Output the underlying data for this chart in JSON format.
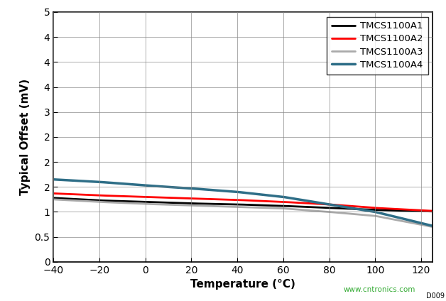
{
  "title": "",
  "xlabel": "Temperature (°C)",
  "ylabel": "Typical Offset (mV)",
  "xlim": [
    -40,
    125
  ],
  "ylim": [
    0,
    5
  ],
  "xticks": [
    -40,
    -20,
    0,
    20,
    40,
    60,
    80,
    100,
    120
  ],
  "yticks": [
    0,
    0.5,
    1.0,
    1.5,
    2.0,
    2.5,
    3.0,
    3.5,
    4.0,
    4.5,
    5.0
  ],
  "series": [
    {
      "label": "TMCS1100A1",
      "color": "#000000",
      "linewidth": 2.0,
      "x": [
        -40,
        -20,
        0,
        20,
        40,
        60,
        80,
        100,
        125
      ],
      "y": [
        1.28,
        1.23,
        1.2,
        1.17,
        1.15,
        1.12,
        1.08,
        1.04,
        1.01
      ]
    },
    {
      "label": "TMCS1100A2",
      "color": "#ff0000",
      "linewidth": 2.0,
      "x": [
        -40,
        -20,
        0,
        20,
        40,
        60,
        80,
        100,
        125
      ],
      "y": [
        1.37,
        1.33,
        1.3,
        1.27,
        1.24,
        1.2,
        1.15,
        1.08,
        1.02
      ]
    },
    {
      "label": "TMCS1100A3",
      "color": "#aaaaaa",
      "linewidth": 2.0,
      "x": [
        -40,
        -20,
        0,
        20,
        40,
        60,
        80,
        100,
        125
      ],
      "y": [
        1.25,
        1.2,
        1.16,
        1.13,
        1.1,
        1.07,
        1.0,
        0.92,
        0.7
      ]
    },
    {
      "label": "TMCS1100A4",
      "color": "#2e6e87",
      "linewidth": 2.5,
      "x": [
        -40,
        -20,
        0,
        20,
        40,
        60,
        80,
        100,
        125
      ],
      "y": [
        1.65,
        1.6,
        1.53,
        1.47,
        1.4,
        1.3,
        1.15,
        1.0,
        0.72
      ]
    }
  ],
  "legend_loc": "upper right",
  "grid_color": "#888888",
  "background_color": "#ffffff",
  "watermark": "www.cntronics.com",
  "watermark_color": "#33aa33",
  "fig_id": "D009"
}
